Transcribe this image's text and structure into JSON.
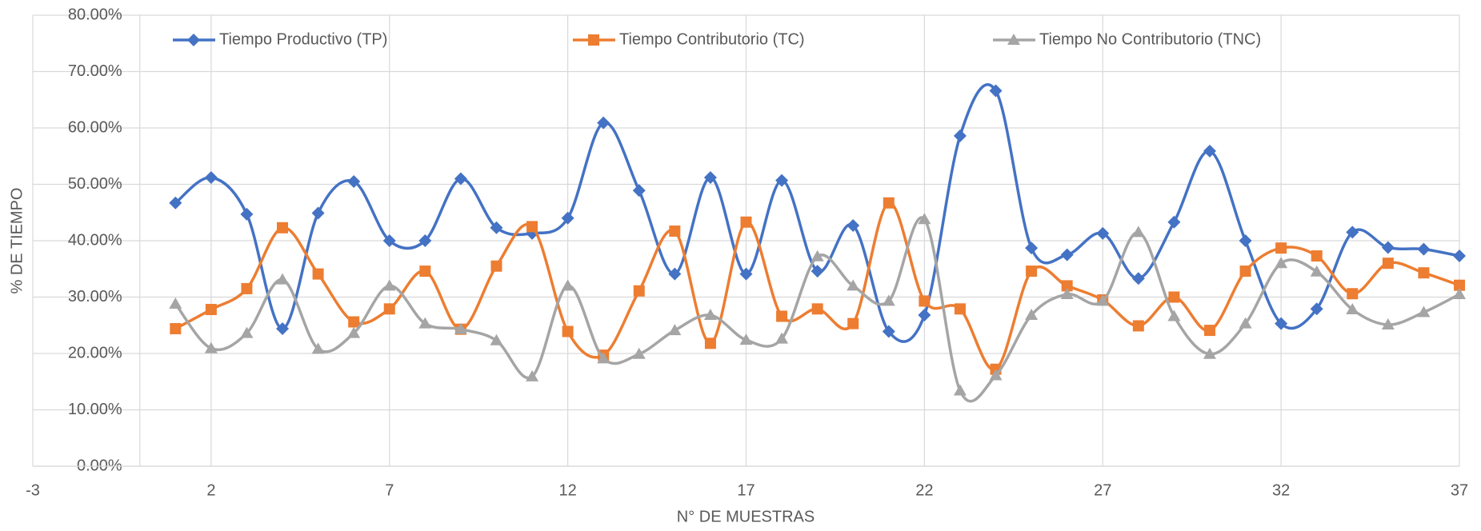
{
  "chart_data": {
    "type": "line",
    "x_label": "N° DE MUESTRAS",
    "y_label": "% DE TIEMPO",
    "x": [
      1,
      2,
      3,
      4,
      5,
      6,
      7,
      8,
      9,
      10,
      11,
      12,
      13,
      14,
      15,
      16,
      17,
      18,
      19,
      20,
      21,
      22,
      23,
      24,
      25,
      26,
      27,
      28,
      29,
      30,
      31,
      32,
      33,
      34,
      35,
      36,
      37
    ],
    "series": [
      {
        "name": "Tiempo Productivo (TP)",
        "color": "#4472c4",
        "marker": "diamond",
        "values": [
          46.7,
          51.2,
          44.7,
          24.4,
          44.9,
          50.5,
          40.0,
          40.0,
          51.0,
          42.3,
          41.3,
          44.0,
          60.9,
          48.9,
          34.1,
          51.2,
          34.1,
          50.7,
          34.6,
          42.7,
          23.9,
          26.8,
          58.6,
          66.6,
          38.7,
          37.5,
          41.3,
          33.3,
          43.3,
          55.9,
          40.0,
          25.3,
          27.9,
          41.5,
          38.8,
          38.5,
          37.3
        ]
      },
      {
        "name": "Tiempo Contributorio (TC)",
        "color": "#ed7d31",
        "marker": "square",
        "values": [
          24.4,
          27.8,
          31.5,
          42.3,
          34.1,
          25.6,
          27.9,
          34.6,
          24.3,
          35.5,
          42.5,
          23.9,
          19.7,
          31.1,
          41.7,
          21.8,
          43.3,
          26.6,
          27.9,
          25.3,
          46.7,
          29.3,
          27.9,
          17.2,
          34.6,
          32.0,
          29.5,
          24.9,
          30.0,
          24.1,
          34.6,
          38.7,
          37.3,
          30.6,
          36.0,
          34.3,
          32.1
        ]
      },
      {
        "name": "Tiempo No Contributorio (TNC)",
        "color": "#a5a5a5",
        "marker": "triangle",
        "values": [
          28.8,
          20.9,
          23.6,
          33.1,
          20.8,
          23.6,
          32.0,
          25.3,
          24.3,
          22.3,
          15.9,
          32.0,
          19.1,
          19.9,
          24.1,
          26.8,
          22.4,
          22.6,
          37.2,
          32.0,
          29.3,
          43.8,
          13.4,
          16.1,
          26.8,
          30.5,
          29.3,
          41.5,
          26.6,
          19.9,
          25.3,
          36.0,
          34.5,
          27.8,
          25.1,
          27.3,
          30.5
        ]
      }
    ],
    "xlim": [
      -3,
      37
    ],
    "xticks": [
      -3,
      2,
      7,
      12,
      17,
      22,
      27,
      32,
      37
    ],
    "ylim": [
      0,
      80
    ],
    "yticks": [
      {
        "value": 0,
        "label": "0.00%"
      },
      {
        "value": 10,
        "label": "10.00%"
      },
      {
        "value": 20,
        "label": "20.00%"
      },
      {
        "value": 30,
        "label": "30.00%"
      },
      {
        "value": 40,
        "label": "40.00%"
      },
      {
        "value": 50,
        "label": "50.00%"
      },
      {
        "value": 60,
        "label": "60.00%"
      },
      {
        "value": 70,
        "label": "70.00%"
      },
      {
        "value": 80,
        "label": "80.00%"
      }
    ],
    "grid": true,
    "smooth": true,
    "legend": "top"
  }
}
